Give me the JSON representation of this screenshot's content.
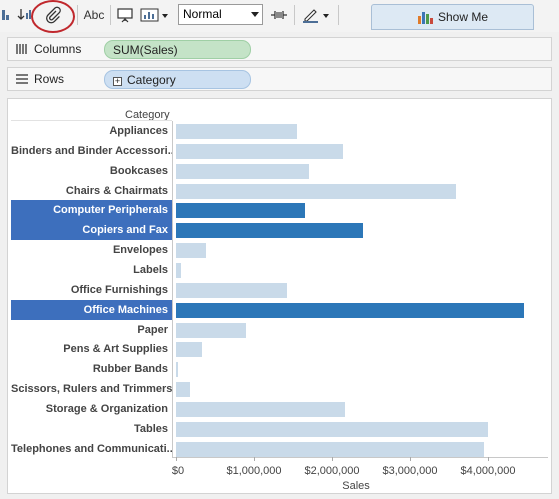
{
  "toolbar": {
    "abc_label": "Abc",
    "fit_select_value": "Normal",
    "show_me_label": "Show Me",
    "icons": [
      "sort-descending-icon",
      "paperclip-icon",
      "abc-label-icon",
      "presentation-icon",
      "chart-type-icon",
      "pin-icon",
      "highlighter-icon",
      "show-me-chart-icon"
    ]
  },
  "shelves": {
    "columns_label": "Columns",
    "columns_pill": "SUM(Sales)",
    "rows_label": "Rows",
    "rows_pill": "Category"
  },
  "colors": {
    "bar": "#c9dae9",
    "bar_selected": "#2c77b8",
    "label_selected_bg": "#3d6fbd",
    "annotation_circle": "#c0282d"
  },
  "chart_data": {
    "type": "bar",
    "orientation": "horizontal",
    "row_header": "Category",
    "categories": [
      "Appliances",
      "Binders and Binder Accessori..",
      "Bookcases",
      "Chairs & Chairmats",
      "Computer Peripherals",
      "Copiers and Fax",
      "Envelopes",
      "Labels",
      "Office Furnishings",
      "Office Machines",
      "Paper",
      "Pens & Art Supplies",
      "Rubber Bands",
      "Scissors, Rulers and Trimmers",
      "Storage & Organization",
      "Tables",
      "Telephones and Communicati.."
    ],
    "values": [
      1550000,
      2140000,
      1700000,
      3590000,
      1660000,
      2400000,
      380000,
      70000,
      1420000,
      4460000,
      900000,
      330000,
      30000,
      180000,
      2170000,
      4000000,
      3950000
    ],
    "selected": [
      "Computer Peripherals",
      "Copiers and Fax",
      "Office Machines"
    ],
    "xlabel": "Sales",
    "ticks": [
      "$0",
      "$1,000,000",
      "$2,000,000",
      "$3,000,000",
      "$4,000,000"
    ],
    "tick_values": [
      0,
      1000000,
      2000000,
      3000000,
      4000000
    ],
    "xlim": [
      0,
      4700000
    ]
  }
}
